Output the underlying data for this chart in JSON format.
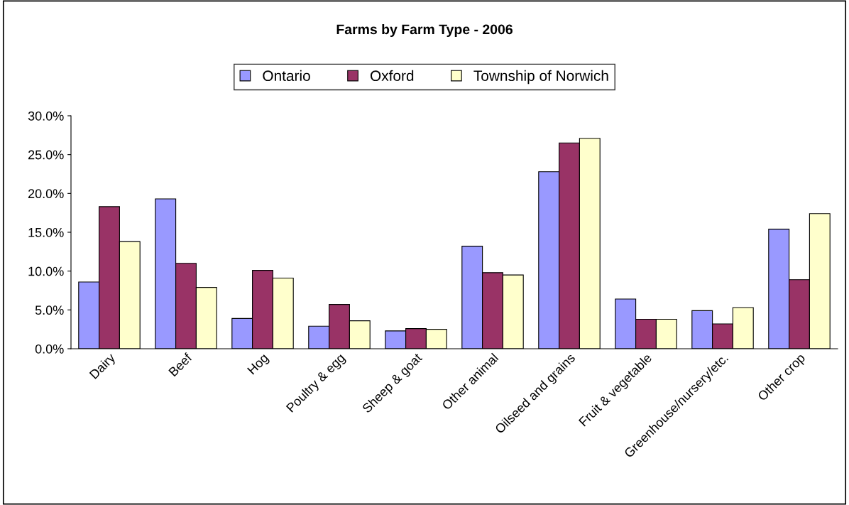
{
  "chart_data": {
    "type": "bar",
    "title": "Farms by Farm Type - 2006",
    "categories": [
      "Dairy",
      "Beef",
      "Hog",
      "Poultry & egg",
      "Sheep & goat",
      "Other animal",
      "Oilseed and grains",
      "Fruit & vegetable",
      "Greenhouse/nursery/etc.",
      "Other crop"
    ],
    "series": [
      {
        "name": "Ontario",
        "color": "#9999ff",
        "values": [
          8.6,
          19.3,
          3.9,
          2.9,
          2.3,
          13.2,
          22.8,
          6.4,
          4.9,
          15.4
        ]
      },
      {
        "name": "Oxford",
        "color": "#993366",
        "values": [
          18.3,
          11.0,
          10.1,
          5.7,
          2.6,
          9.8,
          26.5,
          3.8,
          3.2,
          8.9
        ]
      },
      {
        "name": "Township of Norwich",
        "color": "#ffffcc",
        "values": [
          13.8,
          7.9,
          9.1,
          3.6,
          2.5,
          9.5,
          27.1,
          3.8,
          5.3,
          17.4
        ]
      }
    ],
    "ylim": [
      0,
      30
    ],
    "yticks": [
      {
        "value": 0,
        "label": "0.0%"
      },
      {
        "value": 5,
        "label": "5.0%"
      },
      {
        "value": 10,
        "label": "10.0%"
      },
      {
        "value": 15,
        "label": "15.0%"
      },
      {
        "value": 20,
        "label": "20.0%"
      },
      {
        "value": 25,
        "label": "25.0%"
      },
      {
        "value": 30,
        "label": "30.0%"
      }
    ],
    "grid": false,
    "legend": "top"
  }
}
